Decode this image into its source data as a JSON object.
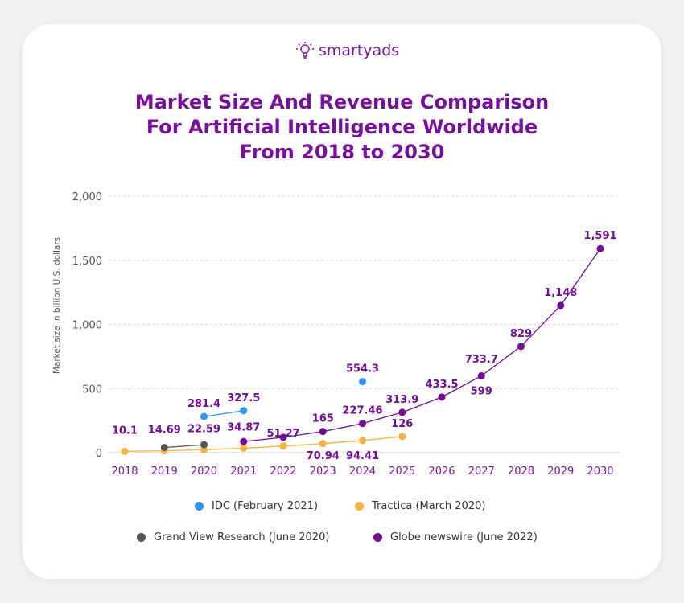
{
  "logo": "smartyads",
  "title_lines": [
    "Market Size And Revenue Comparison",
    "For Artificial Intelligence Worldwide",
    "From 2018 to 2030"
  ],
  "chart_data": {
    "type": "line",
    "title": "Market Size And Revenue Comparison For Artificial Intelligence Worldwide From 2018 to 2030",
    "ylabel": "Market size in billion U.S. dollars",
    "xlabel": "",
    "ylim": [
      0,
      2000
    ],
    "yticks": [
      "0",
      "500",
      "1,000",
      "1,500",
      "2,000"
    ],
    "yticks_values": [
      0,
      500,
      1000,
      1500,
      2000
    ],
    "grid": true,
    "legend_placement": "bottom",
    "categories": [
      "2018",
      "2019",
      "2020",
      "2021",
      "2022",
      "2023",
      "2024",
      "2025",
      "2026",
      "2027",
      "2028",
      "2029",
      "2030"
    ],
    "series": [
      {
        "name": "IDC (February 2021)",
        "color": "#2f93f0",
        "values": [
          null,
          null,
          281.4,
          327.5,
          null,
          null,
          554.3,
          null,
          null,
          null,
          null,
          null,
          null
        ],
        "labels": [
          null,
          null,
          "281.4",
          "327.5",
          null,
          null,
          "554.3",
          null,
          null,
          null,
          null,
          null,
          null
        ]
      },
      {
        "name": "Tractica (March 2020)",
        "color": "#f7b13c",
        "values": [
          10.1,
          14.69,
          22.59,
          34.87,
          51.27,
          70.94,
          94.41,
          126,
          null,
          null,
          null,
          null,
          null
        ],
        "labels": [
          "10.1",
          "14.69",
          "22.59",
          "34.87",
          "51.27",
          "70.94",
          "94.41",
          "126",
          null,
          null,
          null,
          null,
          null
        ]
      },
      {
        "name": "Grand View Research (June 2020)",
        "color": "#555555",
        "values": [
          null,
          40,
          62,
          null,
          null,
          null,
          null,
          null,
          null,
          null,
          null,
          null,
          null
        ],
        "labels": [
          null,
          null,
          null,
          null,
          null,
          null,
          null,
          null,
          null,
          null,
          null,
          null,
          null
        ]
      },
      {
        "name": "Globe newswire (June 2022)",
        "color": "#740b99",
        "values": [
          null,
          null,
          null,
          87,
          120,
          165,
          227.46,
          313.9,
          433.5,
          599,
          829,
          1148,
          1591
        ],
        "labels": [
          null,
          null,
          null,
          null,
          null,
          "165",
          "227.46",
          "313.9",
          "433.5",
          "599",
          "829",
          "1,148",
          "1,591"
        ]
      }
    ],
    "annotations": [
      {
        "text": "733.7",
        "x": "2027"
      }
    ],
    "label_color": "#740b99"
  }
}
